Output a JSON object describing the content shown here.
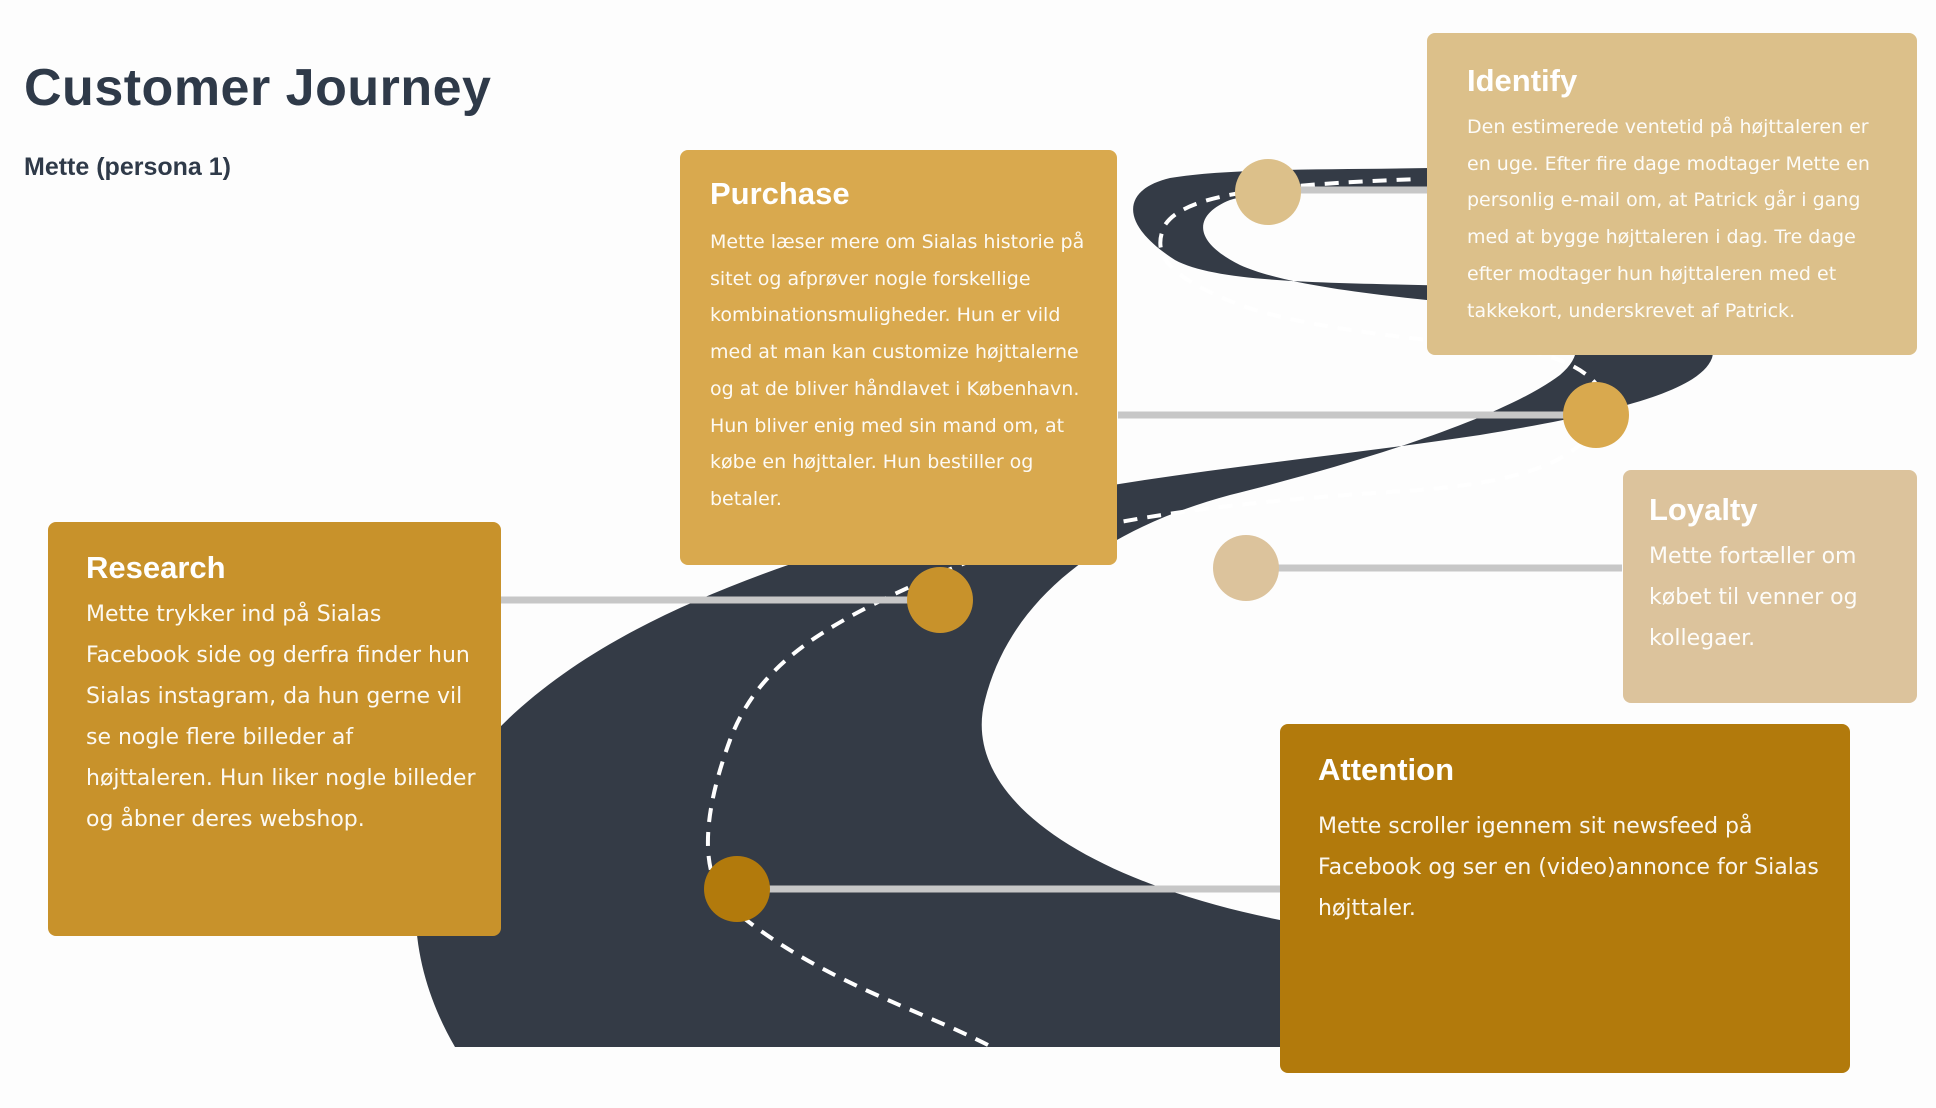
{
  "title": "Customer Journey",
  "subtitle": "Mette (persona 1)",
  "colors": {
    "road": "#343b46",
    "connector": "#c7c7c7",
    "research": "#c8922b",
    "purchase": "#d9a94e",
    "identify": "#dcc08a",
    "loyalty": "#dcc39c",
    "attention": "#b27a0c"
  },
  "stages": {
    "purchase": {
      "title": "Purchase",
      "text": "Mette læser mere om Sialas historie på sitet og afprøver nogle forskellige kombinationsmuligheder. Hun er vild med at man kan customize højttalerne og at de bliver håndlavet i København. Hun bliver enig med sin mand om, at købe en højttaler. Hun bestiller og betaler."
    },
    "identify": {
      "title": "Identify",
      "text": "Den estimerede ventetid på højttaleren er en uge. Efter fire dage modtager Mette en personlig e-mail om, at Patrick går i gang med at bygge højttaleren i dag. Tre dage efter modtager hun højttaleren med et takkekort, underskrevet af Patrick."
    },
    "research": {
      "title": "Research",
      "text": "Mette trykker ind på Sialas Facebook side og derfra finder hun Sialas instagram, da hun gerne vil se nogle flere billeder af højttaleren. Hun liker nogle billeder og åbner deres webshop."
    },
    "loyalty": {
      "title": "Loyalty",
      "text": "Mette fortæller om købet til venner og kollegaer."
    },
    "attention": {
      "title": "Attention",
      "text": "Mette scroller igennem sit newsfeed på Facebook og ser en (video)annonce for Sialas højttaler."
    }
  }
}
